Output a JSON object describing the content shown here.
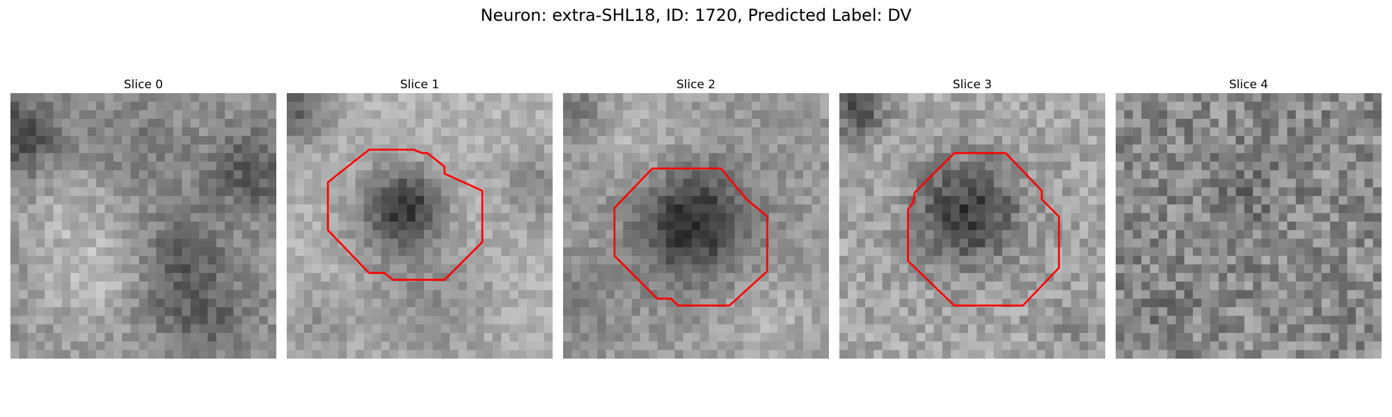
{
  "title": "Neuron: extra-SHL18, ID: 1720, Predicted Label: DV",
  "outline_color": "#ff0000",
  "panels": [
    {
      "label": "Slice 0",
      "has_outline": false
    },
    {
      "label": "Slice 1",
      "has_outline": true
    },
    {
      "label": "Slice 2",
      "has_outline": true
    },
    {
      "label": "Slice 3",
      "has_outline": true
    },
    {
      "label": "Slice 4",
      "has_outline": false
    }
  ]
}
